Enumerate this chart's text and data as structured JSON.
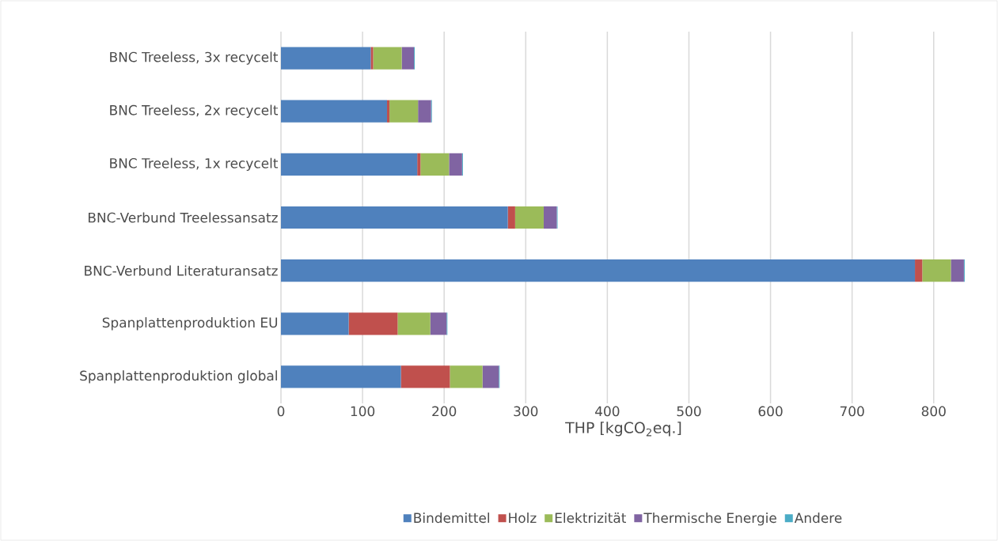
{
  "chart_data": {
    "type": "bar",
    "orientation": "horizontal",
    "stacked": true,
    "categories": [
      "BNC Treeless, 3x recycelt",
      "BNC Treeless, 2x recycelt",
      "BNC Treeless, 1x recycelt",
      "BNC-Verbund Treelessansatz",
      "BNC-Verbund Literaturansatz",
      "Spanplattenproduktion EU",
      "Spanplattenproduktion global"
    ],
    "series": [
      {
        "name": "Bindemittel",
        "color": "#4f81bd",
        "values": [
          110,
          130,
          167,
          278,
          777,
          83,
          147
        ]
      },
      {
        "name": "Holz",
        "color": "#c0504d",
        "values": [
          3,
          3,
          4,
          9,
          9,
          60,
          60
        ]
      },
      {
        "name": "Elektrizität",
        "color": "#9bbb59",
        "values": [
          35,
          35,
          35,
          35,
          35,
          40,
          40
        ]
      },
      {
        "name": "Thermische Energie",
        "color": "#8064a2",
        "values": [
          15,
          16,
          16,
          16,
          16,
          20,
          20
        ]
      },
      {
        "name": "Andere",
        "color": "#4bacc6",
        "values": [
          1,
          1,
          1,
          1,
          1,
          1,
          1
        ]
      }
    ],
    "xlabel": "THP [kgCO$_{2}$eq.]",
    "xlim": [
      0,
      840
    ],
    "xticks": [
      0,
      100,
      200,
      300,
      400,
      500,
      600,
      700,
      800
    ],
    "grid": "x",
    "legend": "bottom"
  }
}
